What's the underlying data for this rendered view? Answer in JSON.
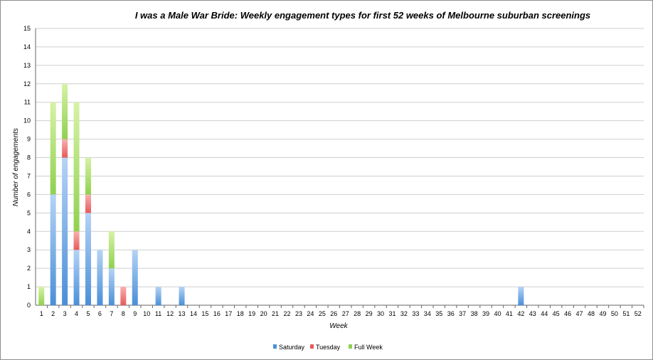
{
  "chart_data": {
    "type": "bar",
    "stacked": true,
    "title": "I was a Male War Bride: Weekly engagement types for first 52 weeks of Melbourne suburban screenings",
    "xlabel": "Week",
    "ylabel": "Number of engagements",
    "ylim": [
      0,
      15
    ],
    "yticks": [
      "0",
      "1",
      "2",
      "3",
      "4",
      "5",
      "6",
      "7",
      "8",
      "9",
      "10",
      "11",
      "12",
      "13",
      "14",
      "15"
    ],
    "grid": true,
    "legend_position": "bottom",
    "categories": [
      "1",
      "2",
      "3",
      "4",
      "5",
      "6",
      "7",
      "8",
      "9",
      "10",
      "11",
      "12",
      "13",
      "14",
      "15",
      "16",
      "17",
      "18",
      "19",
      "20",
      "21",
      "22",
      "23",
      "24",
      "25",
      "26",
      "27",
      "28",
      "29",
      "30",
      "31",
      "32",
      "33",
      "34",
      "35",
      "36",
      "37",
      "38",
      "39",
      "40",
      "41",
      "42",
      "43",
      "44",
      "45",
      "46",
      "47",
      "48",
      "49",
      "50",
      "51",
      "52"
    ],
    "series": [
      {
        "name": "Saturday",
        "color": "#4a8fd9",
        "values": [
          0,
          6,
          8,
          3,
          5,
          3,
          2,
          0,
          3,
          0,
          1,
          0,
          1,
          0,
          0,
          0,
          0,
          0,
          0,
          0,
          0,
          0,
          0,
          0,
          0,
          0,
          0,
          0,
          0,
          0,
          0,
          0,
          0,
          0,
          0,
          0,
          0,
          0,
          0,
          0,
          0,
          1,
          0,
          0,
          0,
          0,
          0,
          0,
          0,
          0,
          0,
          0
        ]
      },
      {
        "name": "Tuesday",
        "color": "#e85a5a",
        "values": [
          0,
          0,
          1,
          1,
          1,
          0,
          0,
          1,
          0,
          0,
          0,
          0,
          0,
          0,
          0,
          0,
          0,
          0,
          0,
          0,
          0,
          0,
          0,
          0,
          0,
          0,
          0,
          0,
          0,
          0,
          0,
          0,
          0,
          0,
          0,
          0,
          0,
          0,
          0,
          0,
          0,
          0,
          0,
          0,
          0,
          0,
          0,
          0,
          0,
          0,
          0,
          0
        ]
      },
      {
        "name": "Full Week",
        "color": "#8fd14f",
        "values": [
          1,
          5,
          3,
          7,
          2,
          0,
          2,
          0,
          0,
          0,
          0,
          0,
          0,
          0,
          0,
          0,
          0,
          0,
          0,
          0,
          0,
          0,
          0,
          0,
          0,
          0,
          0,
          0,
          0,
          0,
          0,
          0,
          0,
          0,
          0,
          0,
          0,
          0,
          0,
          0,
          0,
          0,
          0,
          0,
          0,
          0,
          0,
          0,
          0,
          0,
          0,
          0
        ]
      }
    ]
  }
}
